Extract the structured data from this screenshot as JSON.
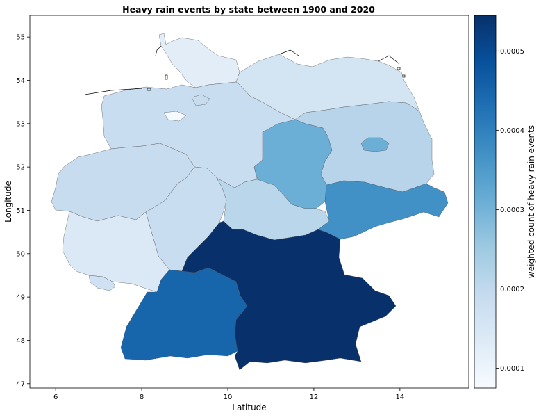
{
  "chart_data": {
    "type": "choropleth",
    "title": "Heavy rain events by state between 1900 and 2020",
    "xlabel": "Latitude",
    "ylabel": "Longitude",
    "xlim": [
      5.4,
      15.6
    ],
    "ylim": [
      46.9,
      55.5
    ],
    "xticks": [
      6,
      8,
      10,
      12,
      14
    ],
    "yticks": [
      47,
      48,
      49,
      50,
      51,
      52,
      53,
      54,
      55
    ],
    "colorbar": {
      "label": "weighted count of heavy rain events",
      "min": 7.5e-05,
      "max": 0.000545,
      "ticks": [
        "0.0001",
        "0.0002",
        "0.0003",
        "0.0004",
        "0.0005"
      ],
      "tick_values": [
        0.0001,
        0.0002,
        0.0003,
        0.0004,
        0.0005
      ],
      "colors": [
        "#f7fbff",
        "#deebf7",
        "#c6dbef",
        "#9ecae1",
        "#6baed6",
        "#4292c6",
        "#2171b5",
        "#08519c",
        "#08306b"
      ]
    },
    "regions": [
      {
        "name": "Schleswig-Holstein",
        "value": 0.000125
      },
      {
        "name": "Mecklenburg-Vorpommern",
        "value": 0.00016
      },
      {
        "name": "Niedersachsen",
        "value": 0.000185
      },
      {
        "name": "Brandenburg",
        "value": 0.000215
      },
      {
        "name": "Sachsen-Anhalt",
        "value": 0.00031
      },
      {
        "name": "Nordrhein-Westfalen",
        "value": 0.00019
      },
      {
        "name": "Hessen",
        "value": 0.000185
      },
      {
        "name": "Thüringen",
        "value": 0.00021
      },
      {
        "name": "Sachsen",
        "value": 0.00037
      },
      {
        "name": "Rheinland-Pfalz",
        "value": 0.00014
      },
      {
        "name": "Saarland",
        "value": 0.00017
      },
      {
        "name": "Baden-Württemberg",
        "value": 0.00045
      },
      {
        "name": "Bayern",
        "value": 0.000545
      },
      {
        "name": "Berlin",
        "value": 0.00031
      },
      {
        "name": "Hamburg",
        "value": 0.00019
      },
      {
        "name": "Bremen",
        "value": 8e-05
      }
    ]
  }
}
